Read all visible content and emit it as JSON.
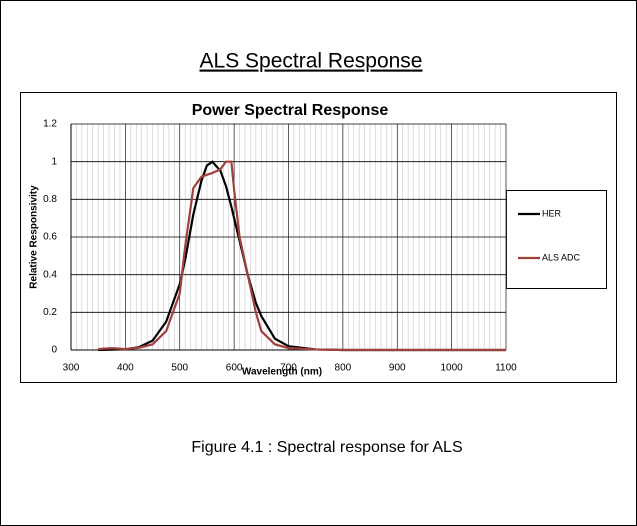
{
  "heading": "ALS Spectral Response",
  "chart_data": {
    "type": "line",
    "title": "Power Spectral Response",
    "x_label": "Wavelength (nm)",
    "y_label": "Relative Responsivity",
    "x": [
      350,
      375,
      400,
      425,
      450,
      475,
      500,
      510,
      525,
      540,
      550,
      560,
      575,
      585,
      595,
      600,
      610,
      625,
      640,
      650,
      675,
      700,
      750,
      800,
      900,
      1000,
      1100
    ],
    "series": [
      {
        "name": "HER",
        "color": "#000000",
        "values": [
          0.0,
          0.002,
          0.004,
          0.015,
          0.05,
          0.15,
          0.35,
          0.48,
          0.72,
          0.9,
          0.98,
          1.0,
          0.95,
          0.87,
          0.76,
          0.7,
          0.58,
          0.4,
          0.25,
          0.18,
          0.06,
          0.02,
          0.003,
          0,
          0,
          0,
          0
        ]
      },
      {
        "name": "ALS ADC",
        "color": "#a0413c",
        "values": [
          0.005,
          0.01,
          0.005,
          0.012,
          0.03,
          0.1,
          0.3,
          0.55,
          0.86,
          0.92,
          0.93,
          0.94,
          0.96,
          1.0,
          1.0,
          0.85,
          0.6,
          0.4,
          0.2,
          0.1,
          0.03,
          0.01,
          0.003,
          0,
          0,
          0,
          0
        ]
      }
    ],
    "xlim": [
      300,
      1100
    ],
    "xticks": [
      300,
      400,
      500,
      600,
      700,
      800,
      900,
      1000,
      1100
    ],
    "ylim": [
      0,
      1.2
    ],
    "yticks": [
      0,
      0.2,
      0.4,
      0.6,
      0.8,
      1,
      1.2
    ],
    "grid": true,
    "minor_grid": true,
    "legend": "right"
  },
  "caption": "Figure 4.1 : Spectral response for ALS"
}
